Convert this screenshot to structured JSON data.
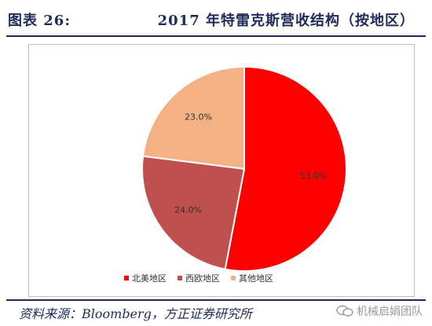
{
  "figure": {
    "label": "图表 26:",
    "title": "2017 年特雷克斯营收结构（按地区）"
  },
  "source": "资料来源：Bloomberg，方正证券研究所",
  "watermark": "机械启娟团队",
  "chart_data": {
    "type": "pie",
    "title": "",
    "categories": [
      "北美地区",
      "西欧地区",
      "其他地区"
    ],
    "values": [
      53.0,
      24.0,
      23.0
    ],
    "labels": [
      "53.0%",
      "24.0%",
      "23.0%"
    ],
    "colors": [
      "#ff0000",
      "#c0504d",
      "#f4b183"
    ],
    "start_angle_deg": 0,
    "direction": "clockwise",
    "legend_position": "bottom"
  }
}
